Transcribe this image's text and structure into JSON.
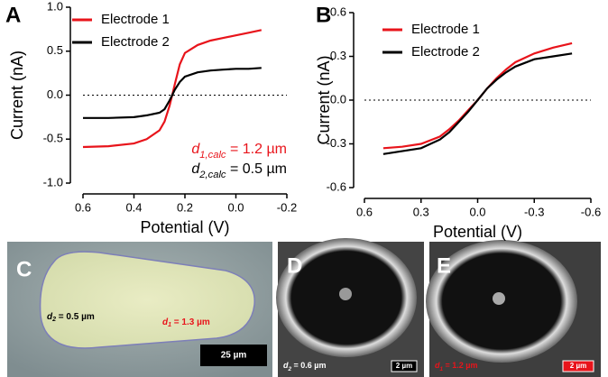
{
  "chart_data": [
    {
      "type": "line",
      "panel": "A",
      "x_label": "Potential (V)",
      "y_label": "Current (nA)",
      "xlim": [
        0.6,
        -0.2
      ],
      "xticks": [
        0.6,
        0.4,
        0.2,
        {
          "value": 0,
          "label": "0.0"
        },
        -0.2
      ],
      "ylim": [
        -1.0,
        1.0
      ],
      "yticks": [
        {
          "value": -1,
          "label": "-1.0"
        },
        -0.5,
        {
          "value": 0,
          "label": "0.0"
        },
        0.5,
        {
          "value": 1,
          "label": "1.0"
        }
      ],
      "reference_line": 0,
      "legend": "upper left",
      "x": [
        0.6,
        0.5,
        0.4,
        0.35,
        0.3,
        0.28,
        0.26,
        0.25,
        0.24,
        0.22,
        0.2,
        0.15,
        0.1,
        0.05,
        0,
        -0.05,
        -0.1
      ],
      "series": [
        {
          "name": "Electrode 1",
          "color": "#e8141b",
          "values": [
            -0.59,
            -0.58,
            -0.55,
            -0.5,
            -0.4,
            -0.3,
            -0.12,
            0,
            0.12,
            0.35,
            0.48,
            0.57,
            0.62,
            0.65,
            0.68,
            0.71,
            0.74
          ]
        },
        {
          "name": "Electrode 2",
          "color": "#000000",
          "values": [
            -0.26,
            -0.26,
            -0.25,
            -0.23,
            -0.2,
            -0.16,
            -0.06,
            0,
            0.06,
            0.15,
            0.21,
            0.26,
            0.28,
            0.29,
            0.3,
            0.3,
            0.31
          ]
        }
      ],
      "annotations": [
        {
          "symbol": "d",
          "subscript": "1,calc",
          "text": " = 1.2 µm",
          "color": "#e8141b"
        },
        {
          "symbol": "d",
          "subscript": "2,calc",
          "text": " = 0.5 µm",
          "color": "#000000"
        }
      ]
    },
    {
      "type": "line",
      "panel": "B",
      "x_label": "Potential (V)",
      "y_label": "Current (nA)",
      "xlim": [
        0.6,
        -0.6
      ],
      "xticks": [
        0.6,
        0.3,
        {
          "value": 0,
          "label": "0.0"
        },
        -0.3,
        -0.6
      ],
      "ylim": [
        -0.6,
        0.6
      ],
      "yticks": [
        -0.6,
        -0.3,
        {
          "value": 0,
          "label": "0.0"
        },
        0.3,
        0.6
      ],
      "reference_line": 0,
      "legend": "upper left",
      "x": [
        0.5,
        0.4,
        0.3,
        0.2,
        0.15,
        0.1,
        0.05,
        0,
        -0.05,
        -0.1,
        -0.15,
        -0.2,
        -0.3,
        -0.4,
        -0.5
      ],
      "series": [
        {
          "name": "Electrode 1",
          "color": "#e8141b",
          "values": [
            -0.33,
            -0.32,
            -0.3,
            -0.25,
            -0.2,
            -0.14,
            -0.07,
            0,
            0.08,
            0.15,
            0.21,
            0.26,
            0.32,
            0.36,
            0.39
          ]
        },
        {
          "name": "Electrode 2",
          "color": "#000000",
          "values": [
            -0.37,
            -0.35,
            -0.33,
            -0.27,
            -0.22,
            -0.15,
            -0.08,
            0,
            0.08,
            0.14,
            0.19,
            0.23,
            0.28,
            0.3,
            0.32
          ]
        }
      ]
    }
  ],
  "panels": [
    {
      "label": "C",
      "scale_bar": "25 µm",
      "annotations": [
        {
          "symbol": "d",
          "subscript": "2",
          "text": " = 0.5 µm",
          "color": "#000000"
        },
        {
          "symbol": "d",
          "subscript": "1",
          "text": " = 1.3 µm",
          "color": "#e8141b"
        }
      ]
    },
    {
      "label": "D",
      "scale_bar": "2 µm",
      "annotations": [
        {
          "symbol": "d",
          "subscript": "2",
          "text": " = 0.6 µm",
          "color": "#ffffff"
        }
      ]
    },
    {
      "label": "E",
      "scale_bar": "2 µm",
      "annotations": [
        {
          "symbol": "d",
          "subscript": "1",
          "text": " = 1.2 µm",
          "color": "#e8141b"
        }
      ]
    }
  ]
}
